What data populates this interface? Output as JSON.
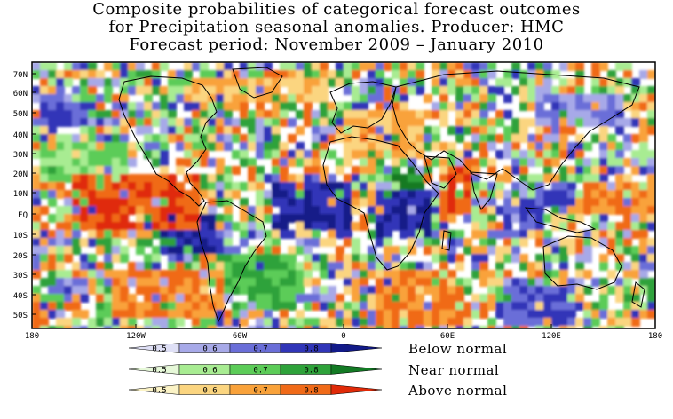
{
  "title": {
    "line1": "Composite probabilities of categorical forecast outcomes",
    "line2": "for Precipitation seasonal anomalies. Producer: HMC",
    "line3": "Forecast period: November 2009 – January 2010"
  },
  "map": {
    "lat_labels": [
      "70N",
      "60N",
      "50N",
      "40N",
      "30N",
      "20N",
      "10N",
      "EQ",
      "10S",
      "20S",
      "30S",
      "40S",
      "50S"
    ],
    "lon_labels": [
      "180",
      "120W",
      "60W",
      "0",
      "60E",
      "120E",
      "180"
    ]
  },
  "legend": {
    "rows": [
      {
        "label": "Below normal",
        "ticks": [
          "0.5",
          "0.6",
          "0.7",
          "0.8"
        ],
        "colors": [
          "#dfe0f6",
          "#a7a9e8",
          "#6a6ed8",
          "#3035b8",
          "#121a88"
        ]
      },
      {
        "label": "Near normal",
        "ticks": [
          "0.5",
          "0.6",
          "0.7",
          "0.8"
        ],
        "colors": [
          "#e6f8d8",
          "#a8ec92",
          "#5ccc58",
          "#2ea23a",
          "#137a24"
        ]
      },
      {
        "label": "Above normal",
        "ticks": [
          "0.5",
          "0.6",
          "0.7",
          "0.8"
        ],
        "colors": [
          "#fbf3c6",
          "#fbd580",
          "#f9a23a",
          "#f06a18",
          "#e02a08"
        ]
      }
    ]
  },
  "colors": {
    "below": "#3a3fc0",
    "near": "#4fb84a",
    "above": "#f07a20",
    "neutral": "#ffffff"
  }
}
